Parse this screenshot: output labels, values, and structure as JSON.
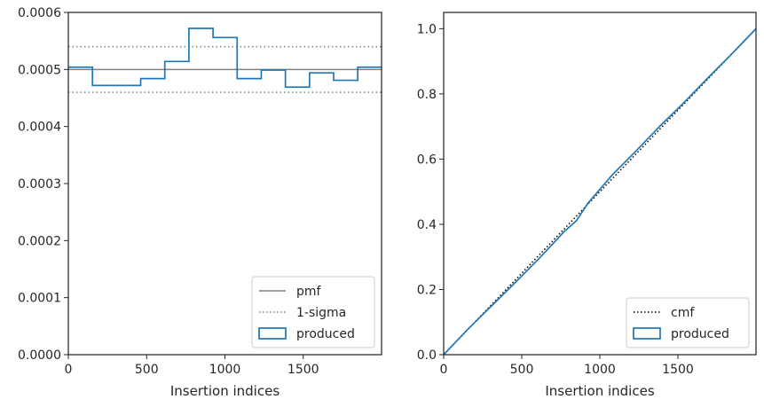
{
  "chart_data": [
    {
      "type": "step",
      "xlabel": "Insertion indices",
      "ylabel": "",
      "xlim": [
        0,
        2000
      ],
      "ylim": [
        0,
        0.0006
      ],
      "xticks": [
        "0",
        "500",
        "1000",
        "1500"
      ],
      "xtick_values": [
        0,
        500,
        1000,
        1500
      ],
      "yticks": [
        "0.0000",
        "0.0001",
        "0.0002",
        "0.0003",
        "0.0004",
        "0.0005",
        "0.0006"
      ],
      "ytick_values": [
        0,
        0.0001,
        0.0002,
        0.0003,
        0.0004,
        0.0005,
        0.0006
      ],
      "legend_position": "lower-right",
      "legend": [
        "pmf",
        "1-sigma",
        "produced"
      ],
      "reference_lines": [
        {
          "name": "pmf",
          "y": 0.0005,
          "style": "solid",
          "color": "#808080"
        },
        {
          "name": "1-sigma",
          "y": 0.00054,
          "style": "dotted",
          "color": "#808080"
        },
        {
          "name": "1-sigma",
          "y": 0.00046,
          "style": "dotted",
          "color": "#808080"
        }
      ],
      "series": [
        {
          "name": "produced",
          "color": "#1f77b4",
          "bin_edges": [
            0,
            154,
            308,
            462,
            616,
            770,
            924,
            1078,
            1232,
            1386,
            1540,
            1694,
            1848,
            2000
          ],
          "values": [
            0.000504,
            0.000472,
            0.000472,
            0.000484,
            0.000514,
            0.000572,
            0.000556,
            0.000484,
            0.000499,
            0.000469,
            0.000494,
            0.000481,
            0.000504
          ]
        }
      ]
    },
    {
      "type": "line",
      "xlabel": "Insertion indices",
      "ylabel": "",
      "xlim": [
        0,
        2000
      ],
      "ylim": [
        0,
        1.05
      ],
      "xticks": [
        "0",
        "500",
        "1000",
        "1500"
      ],
      "xtick_values": [
        0,
        500,
        1000,
        1500
      ],
      "yticks": [
        "0.0",
        "0.2",
        "0.4",
        "0.6",
        "0.8",
        "1.0"
      ],
      "ytick_values": [
        0,
        0.2,
        0.4,
        0.6,
        0.8,
        1.0
      ],
      "legend_position": "lower-right",
      "legend": [
        "cmf",
        "produced"
      ],
      "series": [
        {
          "name": "cmf",
          "style": "dotted",
          "color": "#000000",
          "x": [
            0,
            2000
          ],
          "y": [
            0,
            1.0
          ]
        },
        {
          "name": "produced",
          "style": "solid",
          "color": "#1f77b4",
          "x": [
            0,
            154,
            308,
            462,
            616,
            770,
            850,
            924,
            1078,
            1232,
            1386,
            1540,
            1694,
            1848,
            2000
          ],
          "y": [
            0,
            0.0777,
            0.1503,
            0.223,
            0.2976,
            0.3768,
            0.411,
            0.4649,
            0.5506,
            0.6251,
            0.7019,
            0.7741,
            0.85,
            0.9241,
            1.0
          ]
        }
      ]
    }
  ]
}
